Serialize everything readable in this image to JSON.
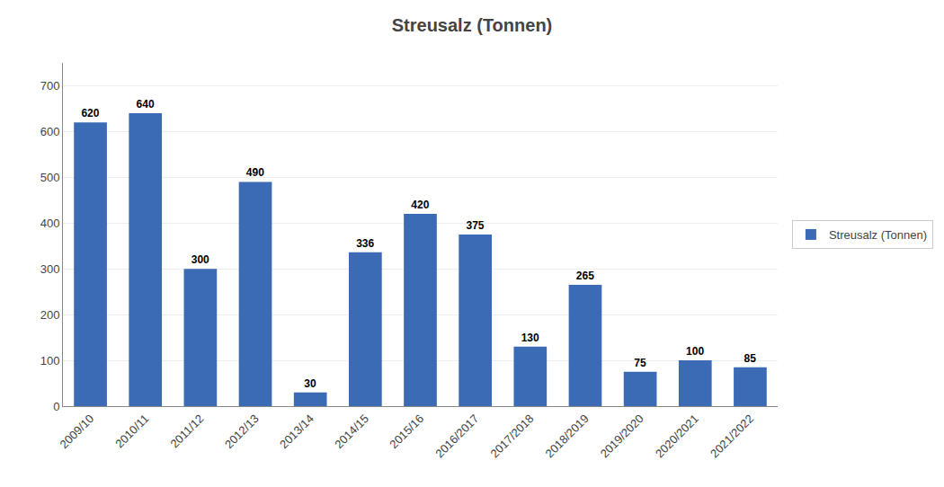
{
  "chart_data": {
    "type": "bar",
    "title": "Streusalz (Tonnen)",
    "categories": [
      "2009/10",
      "2010/11",
      "2011/12",
      "2012/13",
      "2013/14",
      "2014/15",
      "2015/16",
      "2016/2017",
      "2017/2018",
      "2018/2019",
      "2019/2020",
      "2020/2021",
      "2021/2022"
    ],
    "series": [
      {
        "name": "Streusalz (Tonnen)",
        "color": "#3B6BB5",
        "values": [
          620,
          640,
          300,
          490,
          30,
          336,
          420,
          375,
          130,
          265,
          75,
          100,
          85
        ]
      }
    ],
    "ylim": [
      0,
      750
    ],
    "yticks": [
      0,
      100,
      200,
      300,
      400,
      500,
      600,
      700
    ],
    "grid": true,
    "data_labels": true,
    "legend": "right"
  }
}
